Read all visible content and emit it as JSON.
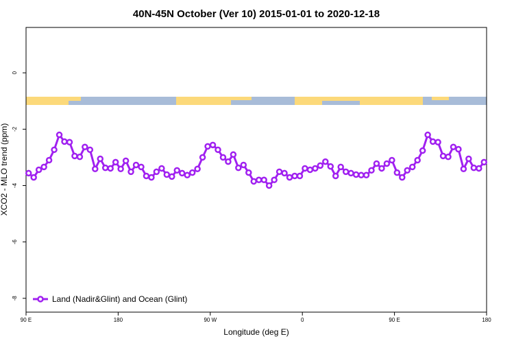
{
  "chart_data": {
    "type": "line",
    "title": "40N-45N October (Ver 10)   2015-01-01 to 2020-12-18",
    "x_label": "Longitude (deg E)",
    "y_label": "XCO2 - MLO trend (ppm)",
    "x": [
      92.5,
      97.5,
      102.5,
      107.5,
      112.5,
      117.5,
      122.5,
      127.5,
      132.5,
      137.5,
      142.5,
      147.5,
      152.5,
      157.5,
      162.5,
      167.5,
      172.5,
      177.5,
      182.5,
      187.5,
      192.5,
      197.5,
      202.5,
      207.5,
      212.5,
      217.5,
      222.5,
      227.5,
      232.5,
      237.5,
      242.5,
      247.5,
      252.5,
      257.5,
      262.5,
      267.5,
      272.5,
      277.5,
      282.5,
      287.5,
      292.5,
      297.5,
      302.5,
      307.5,
      312.5,
      317.5,
      322.5,
      327.5,
      332.5,
      337.5,
      342.5,
      347.5,
      352.5,
      357.5,
      362.5,
      367.5,
      372.5,
      377.5,
      382.5,
      387.5,
      392.5,
      397.5,
      402.5,
      407.5,
      412.5,
      417.5,
      422.5,
      427.5,
      432.5,
      437.5,
      442.5,
      447.5,
      452.5,
      457.5,
      462.5,
      467.5,
      472.5,
      477.5,
      482.5,
      487.5,
      492.5,
      497.5,
      502.5,
      507.5,
      512.5,
      517.5,
      522.5,
      527.5,
      532.5,
      537.5
    ],
    "series": [
      {
        "name": "Land (Nadir&Glint) and Ocean (Glint)",
        "color": "#a020f0",
        "values": [
          -3.56,
          -3.71,
          -3.44,
          -3.34,
          -3.1,
          -2.73,
          -2.2,
          -2.44,
          -2.46,
          -2.95,
          -2.98,
          -2.63,
          -2.73,
          -3.41,
          -3.05,
          -3.37,
          -3.39,
          -3.17,
          -3.41,
          -3.12,
          -3.51,
          -3.27,
          -3.34,
          -3.66,
          -3.71,
          -3.51,
          -3.39,
          -3.61,
          -3.68,
          -3.46,
          -3.56,
          -3.63,
          -3.54,
          -3.41,
          -3.0,
          -2.61,
          -2.56,
          -2.73,
          -3.0,
          -3.15,
          -2.9,
          -3.37,
          -3.27,
          -3.54,
          -3.85,
          -3.8,
          -3.8,
          -4.0,
          -3.8,
          -3.51,
          -3.56,
          -3.71,
          -3.66,
          -3.66,
          -3.39,
          -3.44,
          -3.39,
          -3.29,
          -3.15,
          -3.32,
          -3.66,
          -3.34,
          -3.51,
          -3.56,
          -3.61,
          -3.63,
          -3.63,
          -3.46,
          -3.22,
          -3.39,
          -3.22,
          -3.1,
          -3.54,
          -3.71,
          -3.46,
          -3.34,
          -3.1,
          -2.76,
          -2.2,
          -2.44,
          -2.46,
          -2.95,
          -2.98,
          -2.63,
          -2.71,
          -3.41,
          -3.05,
          -3.37,
          -3.39,
          -3.17
        ]
      }
    ],
    "xlim": [
      90,
      540
    ],
    "xticks": [
      {
        "value": 90,
        "label": "90 E"
      },
      180,
      {
        "value": 270,
        "label": "90 W"
      },
      {
        "value": 360,
        "label": "0"
      },
      {
        "value": 450,
        "label": "90 E"
      },
      {
        "value": 540,
        "label": "180"
      }
    ],
    "ylim": [
      -8.49,
      1.61
    ],
    "yticks": [
      0,
      -2,
      -4,
      -6,
      -8
    ],
    "legend": "bottom-left"
  }
}
